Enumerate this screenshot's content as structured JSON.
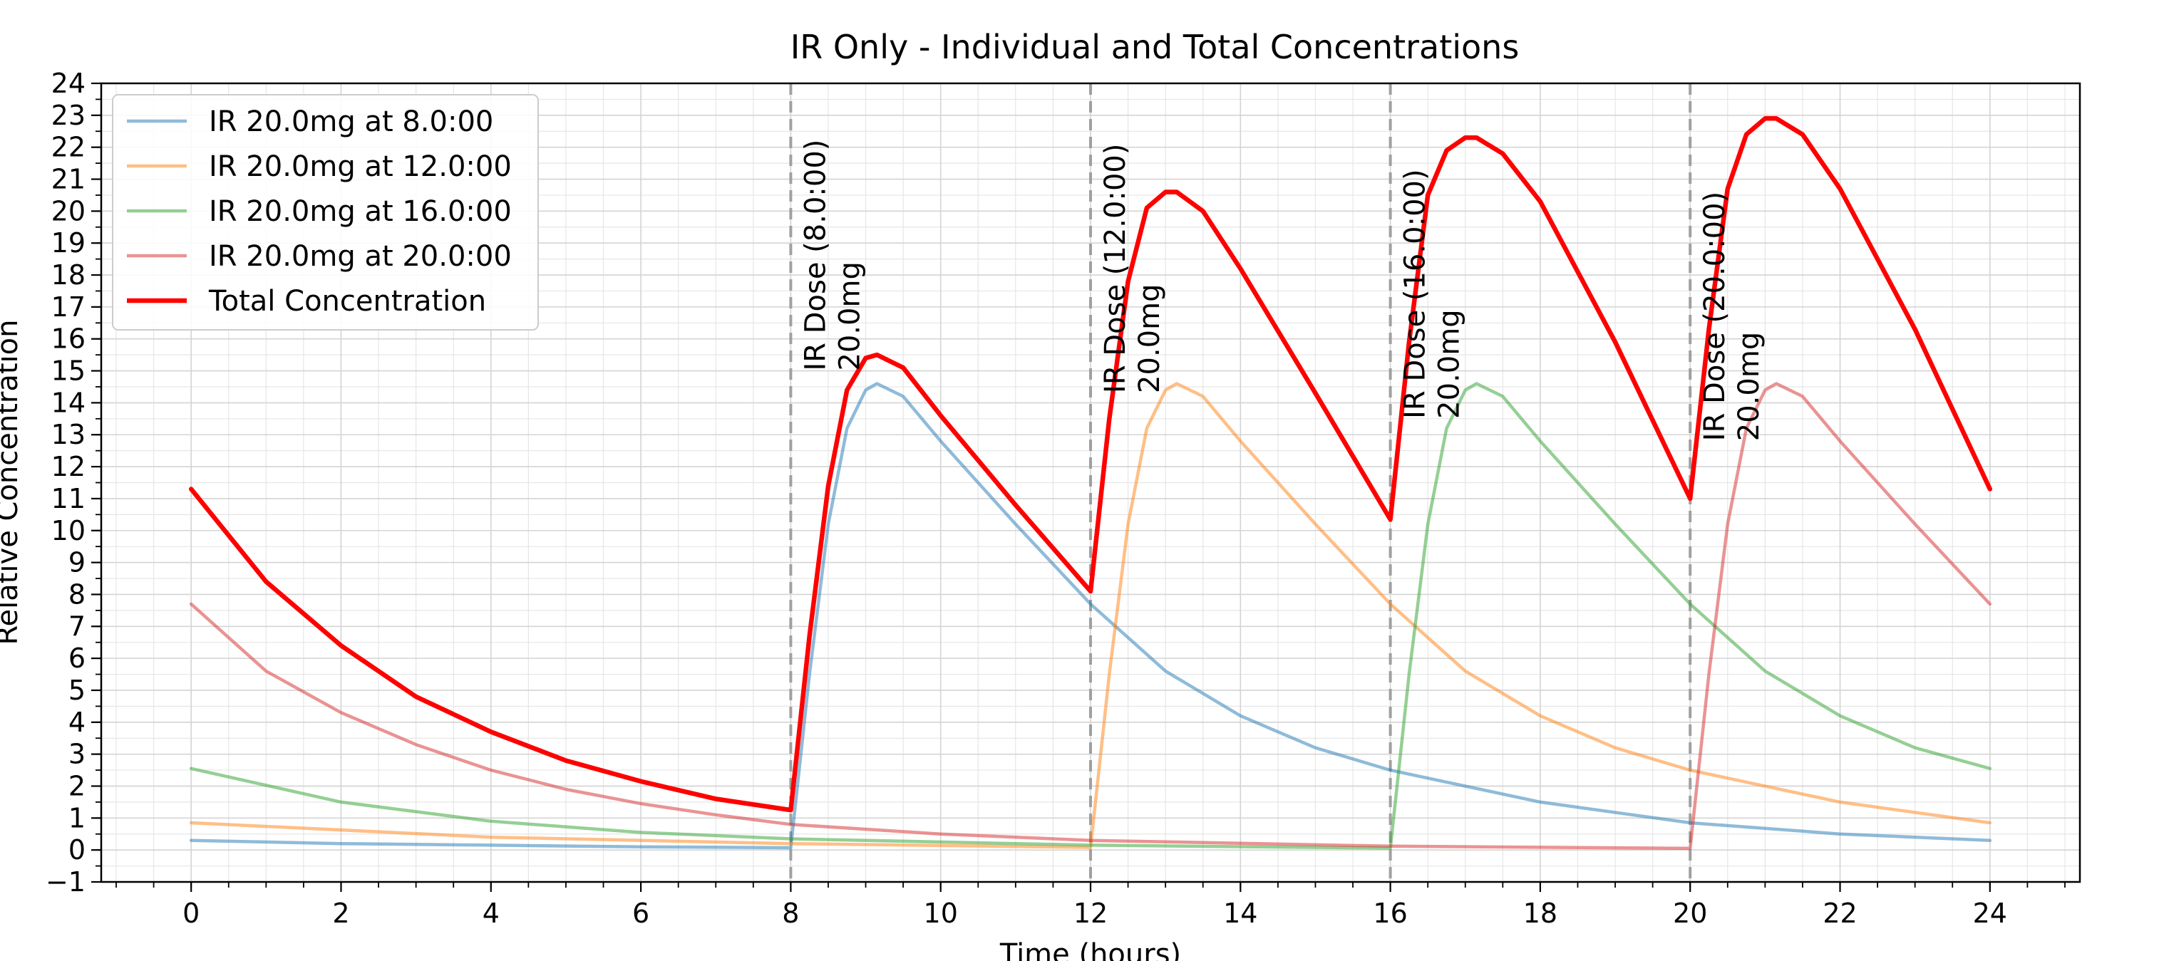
{
  "chart_data": {
    "type": "line",
    "title": "IR Only - Individual and Total Concentrations",
    "xlabel": "Time (hours)",
    "ylabel": "Relative Concentration",
    "xlim": [
      -1.2,
      25.2
    ],
    "ylim": [
      -1,
      24
    ],
    "x_ticks": [
      0,
      2,
      4,
      6,
      8,
      10,
      12,
      14,
      16,
      18,
      20,
      22,
      24
    ],
    "y_ticks": [
      -1,
      0,
      1,
      2,
      3,
      4,
      5,
      6,
      7,
      8,
      9,
      10,
      11,
      12,
      13,
      14,
      15,
      16,
      17,
      18,
      19,
      20,
      21,
      22,
      23,
      24
    ],
    "x_tick_labels": [
      "0",
      "2",
      "4",
      "6",
      "8",
      "10",
      "12",
      "14",
      "16",
      "18",
      "20",
      "22",
      "24"
    ],
    "y_tick_labels": [
      "−1",
      "0",
      "1",
      "2",
      "3",
      "4",
      "5",
      "6",
      "7",
      "8",
      "9",
      "10",
      "11",
      "12",
      "13",
      "14",
      "15",
      "16",
      "17",
      "18",
      "19",
      "20",
      "21",
      "22",
      "23",
      "24"
    ],
    "grid": true,
    "legend_position": "top-left",
    "series": [
      {
        "name": "IR 20.0mg at 8.0:00",
        "color": "#1f77b4",
        "x": [
          0,
          2,
          4,
          6,
          8,
          8.25,
          8.5,
          8.75,
          9,
          9.15,
          9.5,
          10,
          11,
          12,
          13,
          14,
          15,
          16,
          18,
          20,
          22,
          24
        ],
        "y": [
          0.3,
          0.2,
          0.15,
          0.1,
          0.07,
          5.5,
          10.2,
          13.2,
          14.4,
          14.6,
          14.2,
          12.8,
          10.2,
          7.7,
          5.6,
          4.2,
          3.2,
          2.5,
          1.5,
          0.85,
          0.5,
          0.3
        ]
      },
      {
        "name": "IR 20.0mg at 12.0:00",
        "color": "#ff7f0e",
        "x": [
          0,
          4,
          8,
          12,
          12.25,
          12.5,
          12.75,
          13,
          13.15,
          13.5,
          14,
          15,
          16,
          17,
          18,
          19,
          20,
          22,
          24
        ],
        "y": [
          0.85,
          0.4,
          0.2,
          0.08,
          5.5,
          10.2,
          13.2,
          14.4,
          14.6,
          14.2,
          12.8,
          10.2,
          7.7,
          5.6,
          4.2,
          3.2,
          2.5,
          1.5,
          0.85
        ]
      },
      {
        "name": "IR 20.0mg at 16.0:00",
        "color": "#2ca02c",
        "x": [
          0,
          2,
          4,
          6,
          8,
          12,
          16,
          16.25,
          16.5,
          16.75,
          17,
          17.15,
          17.5,
          18,
          19,
          20,
          21,
          22,
          23,
          24
        ],
        "y": [
          2.55,
          1.5,
          0.9,
          0.55,
          0.35,
          0.15,
          0.06,
          5.5,
          10.2,
          13.2,
          14.4,
          14.6,
          14.2,
          12.8,
          10.2,
          7.7,
          5.6,
          4.2,
          3.2,
          2.55
        ]
      },
      {
        "name": "IR 20.0mg at 20.0:00",
        "color": "#d62728",
        "x": [
          0,
          1,
          2,
          3,
          4,
          5,
          6,
          7,
          8,
          10,
          12,
          16,
          20,
          20.25,
          20.5,
          20.75,
          21,
          21.15,
          21.5,
          22,
          23,
          24
        ],
        "y": [
          7.7,
          5.6,
          4.3,
          3.3,
          2.5,
          1.9,
          1.45,
          1.1,
          0.8,
          0.5,
          0.3,
          0.12,
          0.05,
          5.5,
          10.2,
          13.2,
          14.4,
          14.6,
          14.2,
          12.8,
          10.2,
          7.7
        ]
      },
      {
        "name": "Total Concentration",
        "color": "#ff0000",
        "x": [
          0,
          1,
          2,
          3,
          4,
          5,
          6,
          7,
          8,
          8.25,
          8.5,
          8.75,
          9,
          9.15,
          9.5,
          10,
          11,
          12,
          12.25,
          12.5,
          12.75,
          13,
          13.15,
          13.5,
          14,
          15,
          16,
          16.25,
          16.5,
          16.75,
          17,
          17.15,
          17.5,
          18,
          19,
          20,
          20.25,
          20.5,
          20.75,
          21,
          21.15,
          21.5,
          22,
          23,
          24
        ],
        "y": [
          11.3,
          8.4,
          6.4,
          4.8,
          3.7,
          2.8,
          2.15,
          1.6,
          1.25,
          6.7,
          11.4,
          14.4,
          15.4,
          15.5,
          15.1,
          13.6,
          10.8,
          8.1,
          13.5,
          17.8,
          20.1,
          20.6,
          20.6,
          20.0,
          18.2,
          14.3,
          10.35,
          15.9,
          20.5,
          21.9,
          22.3,
          22.3,
          21.8,
          20.3,
          15.9,
          11.0,
          16.3,
          20.7,
          22.4,
          22.9,
          22.9,
          22.4,
          20.7,
          16.3,
          11.3
        ]
      }
    ],
    "annotations": [
      {
        "x": 8,
        "line1": "IR Dose (8.0:00)",
        "line2": "20.0mg"
      },
      {
        "x": 12,
        "line1": "IR Dose (12.0:00)",
        "line2": "20.0mg"
      },
      {
        "x": 16,
        "line1": "IR Dose (16.0:00)",
        "line2": "20.0mg"
      },
      {
        "x": 20,
        "line1": "IR Dose (20.0:00)",
        "line2": "20.0mg"
      }
    ]
  }
}
